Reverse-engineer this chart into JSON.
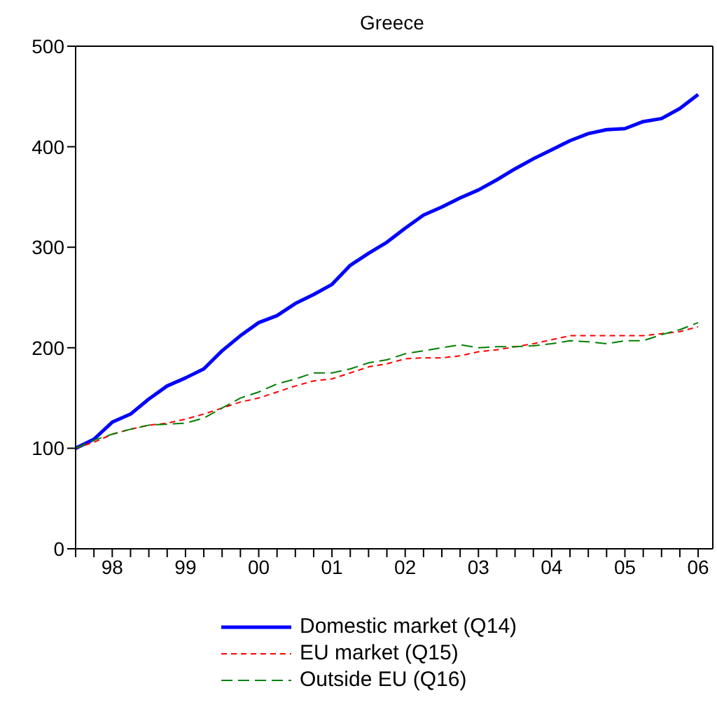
{
  "chart_data": {
    "type": "line",
    "title": "Greece",
    "categories": [
      null,
      null,
      "98",
      null,
      null,
      null,
      "99",
      null,
      null,
      null,
      "00",
      null,
      null,
      null,
      "01",
      null,
      null,
      null,
      "02",
      null,
      null,
      null,
      "03",
      null,
      null,
      null,
      "04",
      null,
      null,
      null,
      "05",
      null,
      null,
      null,
      "06"
    ],
    "series": [
      {
        "name": "Domestic market (Q14)",
        "color": "#0000ff",
        "line_style": "solid",
        "values": [
          100,
          109,
          126,
          134,
          149,
          162,
          170,
          179,
          197,
          212,
          225,
          232,
          244,
          253,
          263,
          282,
          294,
          305,
          319,
          332,
          340,
          349,
          357,
          367,
          378,
          388,
          397,
          406,
          413,
          417,
          418,
          425,
          428,
          438,
          452
        ]
      },
      {
        "name": "EU market (Q15)",
        "color": "#ff0000",
        "line_style": "dotted",
        "values": [
          100,
          106,
          114,
          119,
          123,
          125,
          129,
          134,
          140,
          146,
          150,
          156,
          162,
          167,
          169,
          175,
          181,
          184,
          189,
          190,
          190,
          192,
          196,
          198,
          201,
          204,
          208,
          212,
          212,
          212,
          212,
          212,
          214,
          216,
          221
        ]
      },
      {
        "name": "Outside EU (Q16)",
        "color": "#008000",
        "line_style": "dashed",
        "values": [
          100,
          108,
          114,
          119,
          123,
          124,
          125,
          130,
          140,
          150,
          156,
          164,
          169,
          175,
          175,
          179,
          185,
          188,
          194,
          197,
          200,
          203,
          200,
          201,
          201,
          202,
          204,
          207,
          206,
          204,
          207,
          207,
          213,
          218,
          225
        ]
      }
    ],
    "ylim": [
      0,
      500
    ],
    "yticks": [
      0,
      100,
      200,
      300,
      400,
      500
    ],
    "legend": "bottom",
    "marker": "none"
  }
}
